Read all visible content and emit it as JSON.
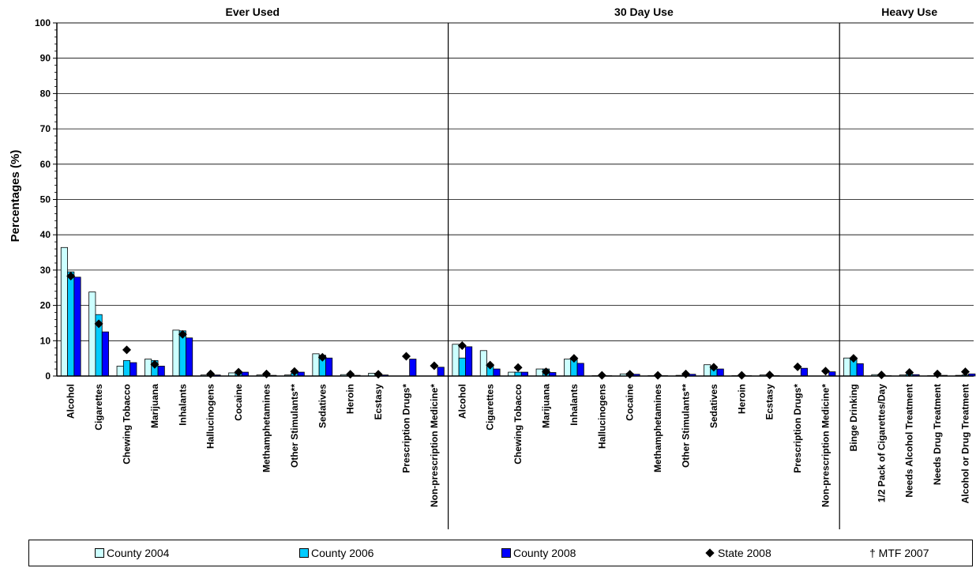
{
  "colors": {
    "county_2004": "#ccffff",
    "county_2006": "#00ccff",
    "county_2008": "#0000ff",
    "state_2008": "#000000"
  },
  "legend": {
    "county_2004": "County 2004",
    "county_2006": "County 2006",
    "county_2008": "County 2008",
    "state_2008": "State 2008",
    "mtf": "† MTF 2007"
  },
  "chart_data": {
    "type": "bar",
    "ylabel": "Percentages (%)",
    "ylim": [
      0,
      100
    ],
    "yticks": [
      0,
      10,
      20,
      30,
      40,
      50,
      60,
      70,
      80,
      90,
      100
    ],
    "grid": true,
    "legend_position": "bottom",
    "sections": [
      {
        "title": "Ever Used",
        "categories": [
          "Alcohol",
          "Cigarettes",
          "Chewing Tobacco",
          "Marijuana",
          "Inhalants",
          "Hallucinogens",
          "Cocaine",
          "Methamphetamines",
          "Other Stimulants**",
          "Sedatives",
          "Heroin",
          "Ecstasy",
          "Prescription Drugs*",
          "Non-prescription Medicine*"
        ],
        "series": [
          {
            "name": "County 2004",
            "values": [
              36.4,
              23.8,
              2.8,
              4.8,
              13.0,
              0.3,
              0.9,
              0.3,
              0.3,
              6.3,
              0.4,
              0.8,
              null,
              null
            ]
          },
          {
            "name": "County 2006",
            "values": [
              29.5,
              17.4,
              4.4,
              4.4,
              12.8,
              0.3,
              1.1,
              0.2,
              0.8,
              5.9,
              0.3,
              0.6,
              null,
              null
            ]
          },
          {
            "name": "County 2008",
            "values": [
              28.0,
              12.5,
              3.8,
              2.8,
              10.8,
              0.3,
              1.1,
              0.2,
              1.1,
              5.1,
              0.2,
              0.3,
              4.8,
              2.5
            ]
          },
          {
            "name": "State 2008",
            "values": [
              28.3,
              14.8,
              7.4,
              3.3,
              11.8,
              0.6,
              1.1,
              0.6,
              1.3,
              5.3,
              0.5,
              0.5,
              5.6,
              2.9
            ]
          }
        ]
      },
      {
        "title": "30 Day Use",
        "categories": [
          "Alcohol",
          "Cigarettes",
          "Chewing Tobacco",
          "Marijuana",
          "Inhalants",
          "Hallucinogens",
          "Cocaine",
          "Methamphetamines",
          "Other Stimulants**",
          "Sedatives",
          "Heroin",
          "Ecstasy",
          "Prescription Drugs*",
          "Non-prescription Medicine*"
        ],
        "series": [
          {
            "name": "County 2004",
            "values": [
              9.0,
              7.2,
              1.1,
              2.0,
              4.8,
              0.1,
              0.6,
              0.1,
              0.2,
              3.2,
              0.1,
              0.3,
              null,
              null
            ]
          },
          {
            "name": "County 2006",
            "values": [
              5.1,
              2.8,
              1.1,
              2.0,
              4.6,
              0.1,
              0.8,
              0.1,
              0.4,
              2.0,
              0.1,
              0.2,
              null,
              null
            ]
          },
          {
            "name": "County 2008",
            "values": [
              8.3,
              2.0,
              1.1,
              1.0,
              3.6,
              0.1,
              0.5,
              0.1,
              0.5,
              2.0,
              0.1,
              0.1,
              2.2,
              1.2
            ]
          },
          {
            "name": "State 2008",
            "values": [
              8.6,
              3.1,
              2.4,
              1.2,
              5.0,
              0.2,
              0.5,
              0.2,
              0.6,
              2.5,
              0.2,
              0.3,
              2.6,
              1.4
            ]
          }
        ]
      },
      {
        "title": "Heavy Use",
        "categories": [
          "Binge Drinking",
          "1/2 Pack of Cigarettes/Day",
          "Needs Alcohol Treatment",
          "Needs Drug Treatment",
          "Alcohol or Drug Treatment"
        ],
        "series": [
          {
            "name": "County 2004",
            "values": [
              5.1,
              0.4,
              0.3,
              0.1,
              0.2
            ]
          },
          {
            "name": "County 2006",
            "values": [
              4.7,
              0.2,
              0.5,
              0.1,
              0.3
            ]
          },
          {
            "name": "County 2008",
            "values": [
              3.5,
              0.1,
              0.4,
              0.2,
              0.6
            ]
          },
          {
            "name": "State 2008",
            "values": [
              5.0,
              0.3,
              1.0,
              0.6,
              1.2
            ]
          }
        ]
      }
    ]
  }
}
